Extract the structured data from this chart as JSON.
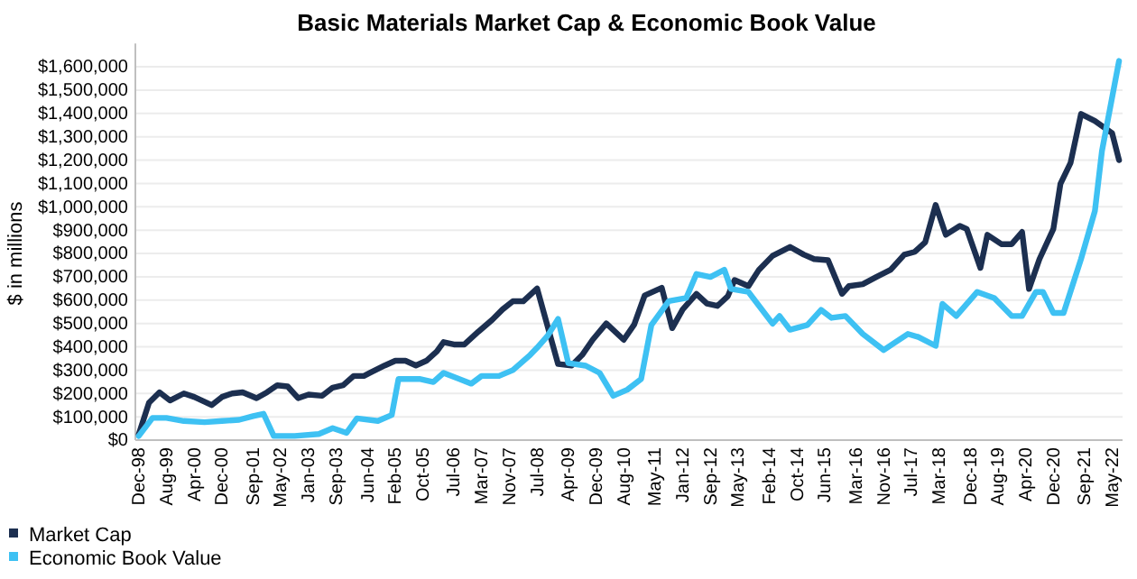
{
  "chart_data": {
    "type": "line",
    "title": "Basic Materials Market Cap & Economic Book Value",
    "ylabel": "$ in millions",
    "xlim": [
      "1998-11",
      "2022-08"
    ],
    "xticks": [
      {
        "value": "1998-12",
        "label": "Dec-98"
      },
      {
        "value": "1999-08",
        "label": "Aug-99"
      },
      {
        "value": "2000-04",
        "label": "Apr-00"
      },
      {
        "value": "2000-12",
        "label": "Dec-00"
      },
      {
        "value": "2001-09",
        "label": "Sep-01"
      },
      {
        "value": "2002-05",
        "label": "May-02"
      },
      {
        "value": "2003-01",
        "label": "Jan-03"
      },
      {
        "value": "2003-09",
        "label": "Sep-03"
      },
      {
        "value": "2004-06",
        "label": "Jun-04"
      },
      {
        "value": "2005-02",
        "label": "Feb-05"
      },
      {
        "value": "2005-10",
        "label": "Oct-05"
      },
      {
        "value": "2006-07",
        "label": "Jul-06"
      },
      {
        "value": "2007-03",
        "label": "Mar-07"
      },
      {
        "value": "2007-11",
        "label": "Nov-07"
      },
      {
        "value": "2008-07",
        "label": "Jul-08"
      },
      {
        "value": "2009-04",
        "label": "Apr-09"
      },
      {
        "value": "2009-12",
        "label": "Dec-09"
      },
      {
        "value": "2010-08",
        "label": "Aug-10"
      },
      {
        "value": "2011-05",
        "label": "May-11"
      },
      {
        "value": "2012-01",
        "label": "Jan-12"
      },
      {
        "value": "2012-09",
        "label": "Sep-12"
      },
      {
        "value": "2013-05",
        "label": "May-13"
      },
      {
        "value": "2014-02",
        "label": "Feb-14"
      },
      {
        "value": "2014-10",
        "label": "Oct-14"
      },
      {
        "value": "2015-06",
        "label": "Jun-15"
      },
      {
        "value": "2016-03",
        "label": "Mar-16"
      },
      {
        "value": "2016-11",
        "label": "Nov-16"
      },
      {
        "value": "2017-07",
        "label": "Jul-17"
      },
      {
        "value": "2018-03",
        "label": "Mar-18"
      },
      {
        "value": "2018-12",
        "label": "Dec-18"
      },
      {
        "value": "2019-08",
        "label": "Aug-19"
      },
      {
        "value": "2020-04",
        "label": "Apr-20"
      },
      {
        "value": "2020-12",
        "label": "Dec-20"
      },
      {
        "value": "2021-09",
        "label": "Sep-21"
      },
      {
        "value": "2022-05",
        "label": "May-22"
      }
    ],
    "ylim": [
      0,
      1700000
    ],
    "yticks": [
      {
        "value": 0,
        "label": "$0"
      },
      {
        "value": 100000,
        "label": "$100,000"
      },
      {
        "value": 200000,
        "label": "$200,000"
      },
      {
        "value": 300000,
        "label": "$300,000"
      },
      {
        "value": 400000,
        "label": "$400,000"
      },
      {
        "value": 500000,
        "label": "$500,000"
      },
      {
        "value": 600000,
        "label": "$600,000"
      },
      {
        "value": 700000,
        "label": "$700,000"
      },
      {
        "value": 800000,
        "label": "$800,000"
      },
      {
        "value": 900000,
        "label": "$900,000"
      },
      {
        "value": 1000000,
        "label": "$1,000,000"
      },
      {
        "value": 1100000,
        "label": "$1,100,000"
      },
      {
        "value": 1200000,
        "label": "$1,200,000"
      },
      {
        "value": 1300000,
        "label": "$1,300,000"
      },
      {
        "value": 1400000,
        "label": "$1,400,000"
      },
      {
        "value": 1500000,
        "label": "$1,500,000"
      },
      {
        "value": 1600000,
        "label": "$1,600,000"
      }
    ],
    "grid": "y",
    "legend": "bottom left",
    "marker": "none",
    "line_style": "solid",
    "series": [
      {
        "name": "Market Cap",
        "color": "#1c2f50",
        "x": [
          "1998-12",
          "1999-03",
          "1999-06",
          "1999-09",
          "2000-01",
          "2000-04",
          "2000-09",
          "2000-12",
          "2001-03",
          "2001-06",
          "2001-10",
          "2002-01",
          "2002-04",
          "2002-07",
          "2002-10",
          "2003-01",
          "2003-05",
          "2003-08",
          "2003-11",
          "2004-02",
          "2004-05",
          "2004-07",
          "2004-11",
          "2005-02",
          "2005-05",
          "2005-08",
          "2005-11",
          "2006-02",
          "2006-04",
          "2006-07",
          "2006-10",
          "2007-02",
          "2007-06",
          "2007-09",
          "2007-12",
          "2008-03",
          "2008-07",
          "2009-01",
          "2009-05",
          "2009-08",
          "2009-11",
          "2010-03",
          "2010-08",
          "2010-11",
          "2011-02",
          "2011-07",
          "2011-10",
          "2012-01",
          "2012-05",
          "2012-08",
          "2012-11",
          "2013-02",
          "2013-04",
          "2013-08",
          "2013-11",
          "2014-03",
          "2014-08",
          "2014-12",
          "2015-03",
          "2015-07",
          "2015-11",
          "2016-01",
          "2016-05",
          "2016-09",
          "2017-01",
          "2017-05",
          "2017-08",
          "2017-11",
          "2018-02",
          "2018-05",
          "2018-09",
          "2018-11",
          "2019-03",
          "2019-05",
          "2019-09",
          "2019-12",
          "2020-03",
          "2020-05",
          "2020-08",
          "2020-12",
          "2021-02",
          "2021-05",
          "2021-08",
          "2021-12",
          "2022-05",
          "2022-07"
        ],
        "values": [
          25000,
          160000,
          205000,
          170000,
          200000,
          185000,
          150000,
          185000,
          200000,
          205000,
          180000,
          205000,
          235000,
          230000,
          180000,
          195000,
          190000,
          225000,
          235000,
          275000,
          275000,
          290000,
          320000,
          340000,
          340000,
          320000,
          340000,
          380000,
          420000,
          410000,
          410000,
          465000,
          515000,
          560000,
          595000,
          595000,
          650000,
          326000,
          320000,
          365000,
          430000,
          500000,
          430000,
          495000,
          620000,
          653000,
          480000,
          560000,
          627000,
          585000,
          575000,
          617000,
          686000,
          660000,
          730000,
          790000,
          828000,
          795000,
          776000,
          771000,
          627000,
          660000,
          668000,
          700000,
          730000,
          795000,
          807000,
          848000,
          1008000,
          880000,
          918000,
          905000,
          738000,
          880000,
          840000,
          840000,
          892000,
          648000,
          776000,
          905000,
          1098000,
          1188000,
          1398000,
          1368000,
          1316000,
          1200000
        ]
      },
      {
        "name": "Economic Book Value",
        "color": "#3ec1f3",
        "x": [
          "1998-12",
          "1999-04",
          "1999-08",
          "2000-01",
          "2000-07",
          "2000-12",
          "2001-05",
          "2001-09",
          "2001-12",
          "2002-03",
          "2002-09",
          "2003-04",
          "2003-08",
          "2003-12",
          "2004-03",
          "2004-09",
          "2005-01",
          "2005-03",
          "2005-09",
          "2006-01",
          "2006-04",
          "2006-12",
          "2007-03",
          "2007-08",
          "2007-12",
          "2008-05",
          "2008-07",
          "2008-10",
          "2009-01",
          "2009-04",
          "2009-09",
          "2010-01",
          "2010-05",
          "2010-09",
          "2011-01",
          "2011-04",
          "2011-09",
          "2012-02",
          "2012-05",
          "2012-09",
          "2013-01",
          "2013-03",
          "2013-08",
          "2014-03",
          "2014-05",
          "2014-08",
          "2015-01",
          "2015-05",
          "2015-08",
          "2015-12",
          "2016-05",
          "2016-11",
          "2017-02",
          "2017-06",
          "2017-09",
          "2018-02",
          "2018-04",
          "2018-08",
          "2019-02",
          "2019-07",
          "2019-12",
          "2020-03",
          "2020-07",
          "2020-09",
          "2020-12",
          "2021-03",
          "2021-08",
          "2021-12",
          "2022-02",
          "2022-07"
        ],
        "values": [
          18000,
          95000,
          95000,
          82000,
          77000,
          82000,
          87000,
          103000,
          113000,
          18000,
          18000,
          26000,
          51000,
          31000,
          93000,
          82000,
          108000,
          262000,
          262000,
          249000,
          288000,
          242000,
          275000,
          275000,
          300000,
          365000,
          396000,
          447000,
          519000,
          330000,
          319000,
          288000,
          190000,
          216000,
          262000,
          493000,
          596000,
          609000,
          712000,
          699000,
          730000,
          648000,
          635000,
          499000,
          532000,
          473000,
          493000,
          558000,
          524000,
          532000,
          455000,
          386000,
          416000,
          455000,
          442000,
          404000,
          584000,
          532000,
          635000,
          609000,
          532000,
          532000,
          635000,
          635000,
          545000,
          545000,
          776000,
          982000,
          1239000,
          1625000
        ]
      }
    ]
  }
}
